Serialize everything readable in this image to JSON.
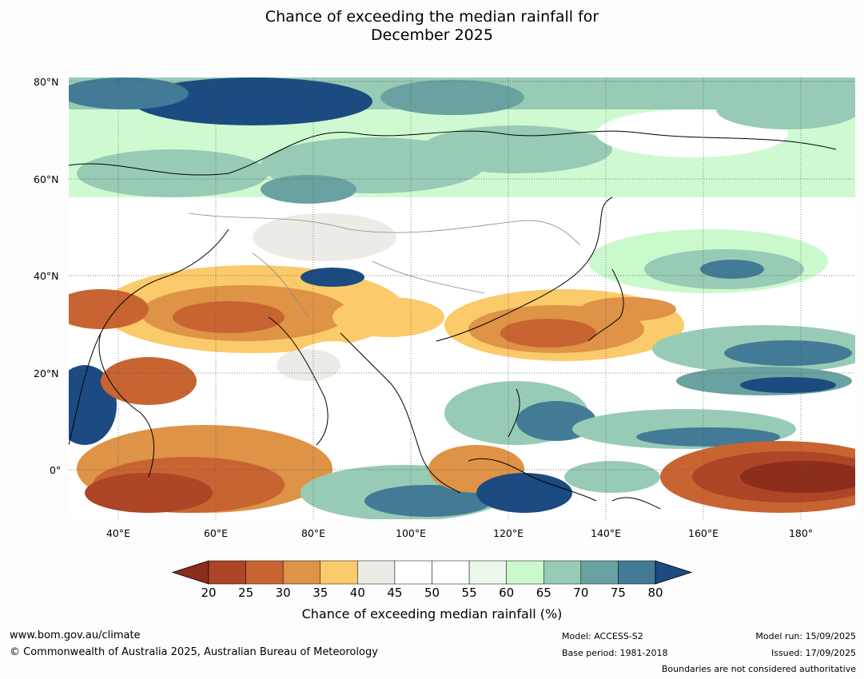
{
  "title_line1": "Chance of exceeding the median rainfall for",
  "title_line2": "December 2025",
  "lat_ticks": [
    "80°N",
    "60°N",
    "40°N",
    "20°N",
    "0°"
  ],
  "lon_ticks": [
    "40°E",
    "60°E",
    "80°E",
    "100°E",
    "120°E",
    "140°E",
    "160°E",
    "180°"
  ],
  "colorbar": {
    "levels": [
      "20",
      "25",
      "30",
      "35",
      "40",
      "45",
      "50",
      "55",
      "60",
      "65",
      "70",
      "75",
      "80"
    ],
    "colors": [
      "#8c2d1c",
      "#ad4526",
      "#c86431",
      "#de9347",
      "#fbca6a",
      "#edebe6",
      "#ffffff",
      "#ffffff",
      "#ebf7ea",
      "#caf9cc",
      "#97cbb5",
      "#6aa2a1",
      "#437a96",
      "#1b4b80"
    ],
    "title": "Chance of exceeding median rainfall (%)"
  },
  "footer": {
    "url": "www.bom.gov.au/climate",
    "copyright": "© Commonwealth of Australia 2025, Australian Bureau of Meteorology",
    "model": "Model: ACCESS-S2",
    "base_period": "Base period: 1981-2018",
    "model_run": "Model run: 15/09/2025",
    "issued": "Issued: 17/09/2025",
    "disclaimer": "Boundaries are not considered authoritative"
  }
}
